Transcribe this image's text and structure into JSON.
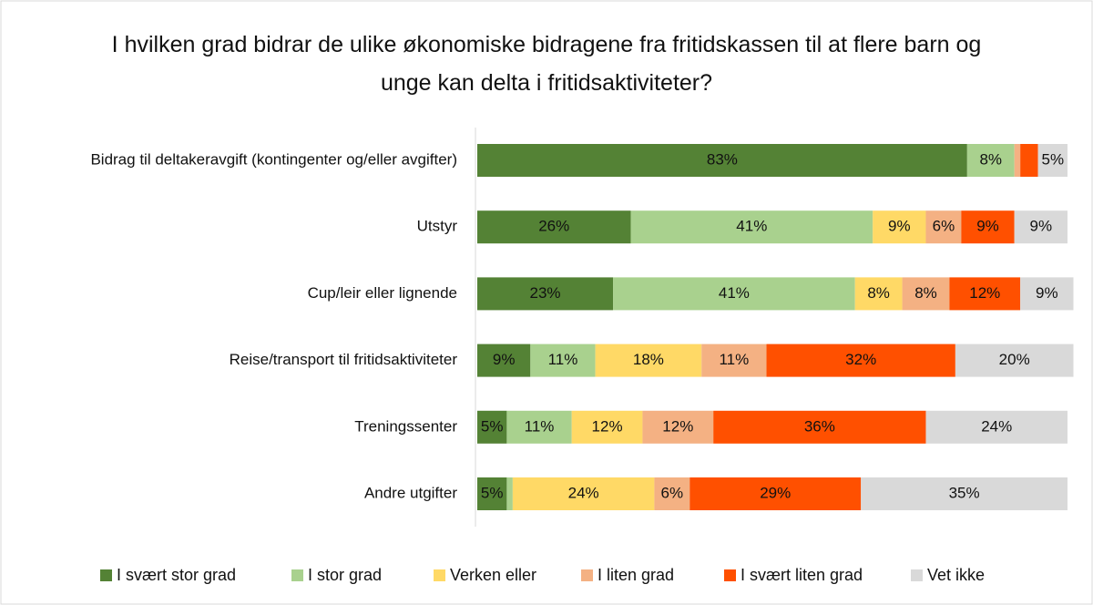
{
  "chart_data": {
    "type": "stacked_barh",
    "title": "I hvilken grad bidrar de ulike økonomiske bidragene fra fritidskassen til at flere barn og unge kan delta i fritidsaktiviteter?",
    "categories": [
      "Bidrag til deltakeravgift (kontingenter og/eller avgifter)",
      "Utstyr",
      "Cup/leir eller lignende",
      "Reise/transport til fritidsaktiviteter",
      "Treningssenter",
      "Andre utgifter"
    ],
    "xlim": [
      0,
      100
    ],
    "legend": "bottom",
    "series": [
      {
        "name": "I svært stor grad",
        "color": "#548235",
        "values": [
          83,
          26,
          23,
          9,
          5,
          5
        ],
        "value_labels": [
          "83%",
          "26%",
          "23%",
          "9%",
          "5%",
          "5%"
        ]
      },
      {
        "name": "I stor grad",
        "color": "#a9d18e",
        "values": [
          8,
          41,
          41,
          11,
          11,
          1
        ],
        "value_labels": [
          "8%",
          "41%",
          "41%",
          "11%",
          "11%",
          null
        ]
      },
      {
        "name": "Verken eller",
        "color": "#ffd966",
        "values": [
          0,
          9,
          8,
          18,
          12,
          24
        ],
        "value_labels": [
          null,
          "9%",
          "8%",
          "18%",
          "12%",
          "24%"
        ]
      },
      {
        "name": "I liten grad",
        "color": "#f4b183",
        "values": [
          1,
          6,
          8,
          11,
          12,
          6
        ],
        "value_labels": [
          null,
          "6%",
          "8%",
          "11%",
          "12%",
          "6%"
        ]
      },
      {
        "name": "I svært liten grad",
        "color": "#ff5000",
        "values": [
          3,
          9,
          12,
          32,
          36,
          29
        ],
        "value_labels": [
          null,
          "9%",
          "12%",
          "32%",
          "36%",
          "29%"
        ]
      },
      {
        "name": "Vet ikke",
        "color": "#d9d9d9",
        "values": [
          5,
          9,
          9,
          20,
          24,
          35
        ],
        "value_labels": [
          "5%",
          "9%",
          "9%",
          "20%",
          "24%",
          "35%"
        ]
      }
    ]
  }
}
